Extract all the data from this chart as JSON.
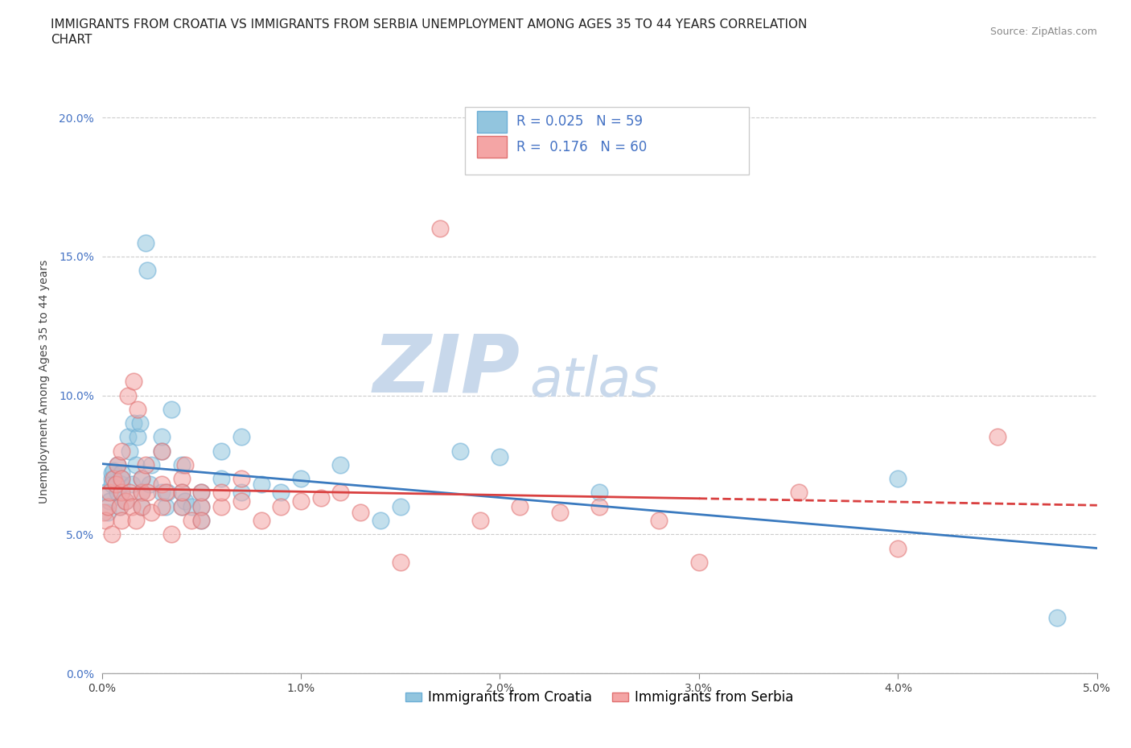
{
  "title_line1": "IMMIGRANTS FROM CROATIA VS IMMIGRANTS FROM SERBIA UNEMPLOYMENT AMONG AGES 35 TO 44 YEARS CORRELATION",
  "title_line2": "CHART",
  "source": "Source: ZipAtlas.com",
  "ylabel": "Unemployment Among Ages 35 to 44 years",
  "xlim": [
    0.0,
    0.05
  ],
  "ylim": [
    0.0,
    0.21
  ],
  "xticks": [
    0.0,
    0.01,
    0.02,
    0.03,
    0.04,
    0.05
  ],
  "xticklabels": [
    "0.0%",
    "1.0%",
    "2.0%",
    "3.0%",
    "4.0%",
    "5.0%"
  ],
  "yticks": [
    0.0,
    0.05,
    0.1,
    0.15,
    0.2
  ],
  "yticklabels": [
    "0.0%",
    "5.0%",
    "10.0%",
    "15.0%",
    "20.0%"
  ],
  "croatia_color": "#92c5de",
  "croatia_edge": "#6baed6",
  "serbia_color": "#f4a5a5",
  "serbia_edge": "#e07070",
  "line_croatia_color": "#3a7abf",
  "line_serbia_color": "#d94040",
  "croatia_R": 0.025,
  "croatia_N": 59,
  "serbia_R": 0.176,
  "serbia_N": 60,
  "watermark_zip": "ZIP",
  "watermark_atlas": "atlas",
  "watermark_color": "#c8d8eb",
  "croatia_x": [
    0.0002,
    0.0003,
    0.0004,
    0.0005,
    0.0005,
    0.0005,
    0.0006,
    0.0007,
    0.0008,
    0.0008,
    0.0009,
    0.001,
    0.001,
    0.001,
    0.001,
    0.0012,
    0.0013,
    0.0014,
    0.0015,
    0.0016,
    0.0017,
    0.0018,
    0.0019,
    0.002,
    0.002,
    0.002,
    0.0022,
    0.0023,
    0.0024,
    0.0025,
    0.003,
    0.003,
    0.003,
    0.0032,
    0.0033,
    0.0035,
    0.004,
    0.004,
    0.004,
    0.0042,
    0.0045,
    0.005,
    0.005,
    0.005,
    0.006,
    0.006,
    0.007,
    0.007,
    0.008,
    0.009,
    0.01,
    0.012,
    0.014,
    0.015,
    0.018,
    0.02,
    0.025,
    0.04,
    0.048
  ],
  "croatia_y": [
    0.065,
    0.058,
    0.062,
    0.07,
    0.072,
    0.068,
    0.073,
    0.068,
    0.065,
    0.075,
    0.06,
    0.065,
    0.07,
    0.068,
    0.072,
    0.062,
    0.085,
    0.08,
    0.068,
    0.09,
    0.075,
    0.085,
    0.09,
    0.07,
    0.065,
    0.06,
    0.155,
    0.145,
    0.068,
    0.075,
    0.065,
    0.08,
    0.085,
    0.06,
    0.065,
    0.095,
    0.065,
    0.06,
    0.075,
    0.062,
    0.06,
    0.055,
    0.065,
    0.06,
    0.08,
    0.07,
    0.065,
    0.085,
    0.068,
    0.065,
    0.07,
    0.075,
    0.055,
    0.06,
    0.08,
    0.078,
    0.065,
    0.07,
    0.02
  ],
  "serbia_x": [
    0.0001,
    0.0002,
    0.0003,
    0.0004,
    0.0005,
    0.0006,
    0.0007,
    0.0008,
    0.0009,
    0.001,
    0.001,
    0.001,
    0.001,
    0.0012,
    0.0013,
    0.0014,
    0.0015,
    0.0016,
    0.0017,
    0.0018,
    0.002,
    0.002,
    0.002,
    0.0022,
    0.0023,
    0.0025,
    0.003,
    0.003,
    0.003,
    0.0032,
    0.0035,
    0.004,
    0.004,
    0.004,
    0.0042,
    0.0045,
    0.005,
    0.005,
    0.005,
    0.006,
    0.006,
    0.007,
    0.007,
    0.008,
    0.009,
    0.01,
    0.011,
    0.012,
    0.013,
    0.015,
    0.017,
    0.019,
    0.021,
    0.023,
    0.025,
    0.028,
    0.03,
    0.035,
    0.04,
    0.045
  ],
  "serbia_y": [
    0.058,
    0.055,
    0.06,
    0.065,
    0.05,
    0.07,
    0.068,
    0.075,
    0.06,
    0.065,
    0.07,
    0.055,
    0.08,
    0.062,
    0.1,
    0.065,
    0.06,
    0.105,
    0.055,
    0.095,
    0.065,
    0.07,
    0.06,
    0.075,
    0.065,
    0.058,
    0.06,
    0.068,
    0.08,
    0.065,
    0.05,
    0.07,
    0.06,
    0.065,
    0.075,
    0.055,
    0.06,
    0.065,
    0.055,
    0.06,
    0.065,
    0.07,
    0.062,
    0.055,
    0.06,
    0.062,
    0.063,
    0.065,
    0.058,
    0.04,
    0.16,
    0.055,
    0.06,
    0.058,
    0.06,
    0.055,
    0.04,
    0.065,
    0.045,
    0.085
  ],
  "title_fontsize": 11,
  "axis_label_fontsize": 10,
  "tick_fontsize": 10,
  "legend_fontsize": 12,
  "source_fontsize": 9
}
